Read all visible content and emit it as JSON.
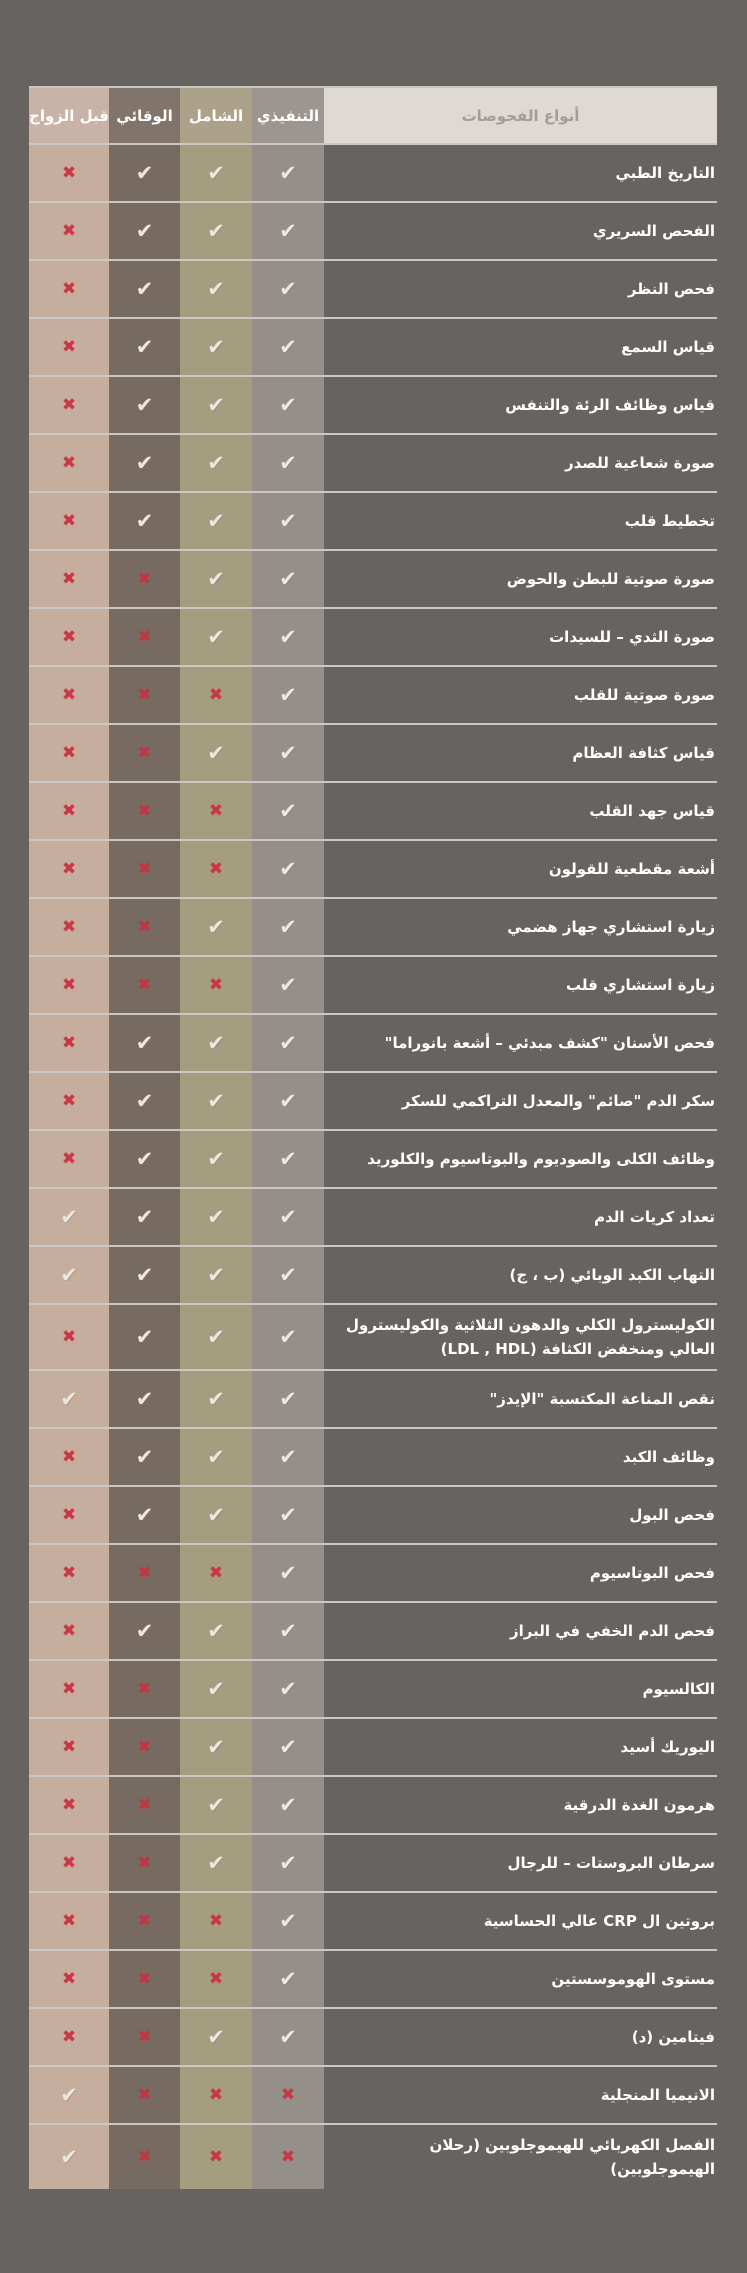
{
  "colors": {
    "page_background": "#666361",
    "row_separator": "#cbc8c4",
    "check_mark": "#ebe7e1",
    "x_mark": "#cb3040",
    "row_name_text": "#ffffff",
    "tests_header_background": "#ded9d3",
    "tests_header_text": "#a49d95"
  },
  "table": {
    "header": {
      "tests_label": "أنواع الفحوصات",
      "columns": [
        {
          "key": "executive",
          "label": "التنفيذي",
          "header_color": "#9c9590",
          "body_color": "#949089"
        },
        {
          "key": "comprehensive",
          "label": "الشامل",
          "header_color": "#aba289",
          "body_color": "#a59d80"
        },
        {
          "key": "preventive",
          "label": "الوقائي",
          "header_color": "#80746b",
          "body_color": "#776b61"
        },
        {
          "key": "premarital",
          "label": "قبل الزواج",
          "header_color": "#c9b2a7",
          "body_color": "#c6ae9f"
        }
      ]
    },
    "icons": {
      "check": "✔",
      "x": "✖"
    },
    "rows": [
      {
        "name": "التاريخ الطبي",
        "marks": [
          "check",
          "check",
          "check",
          "x"
        ]
      },
      {
        "name": "الفحص السريري",
        "marks": [
          "check",
          "check",
          "check",
          "x"
        ]
      },
      {
        "name": "فحص النظر",
        "marks": [
          "check",
          "check",
          "check",
          "x"
        ]
      },
      {
        "name": "قياس السمع",
        "marks": [
          "check",
          "check",
          "check",
          "x"
        ]
      },
      {
        "name": "قياس وظائف الرئة والتنفس",
        "marks": [
          "check",
          "check",
          "check",
          "x"
        ]
      },
      {
        "name": "صورة شعاعية للصدر",
        "marks": [
          "check",
          "check",
          "check",
          "x"
        ]
      },
      {
        "name": "تخطيط قلب",
        "marks": [
          "check",
          "check",
          "check",
          "x"
        ]
      },
      {
        "name": "صورة صوتية للبطن والحوض",
        "marks": [
          "check",
          "check",
          "x",
          "x"
        ]
      },
      {
        "name": "صورة الثدي – للسيدات",
        "marks": [
          "check",
          "check",
          "x",
          "x"
        ]
      },
      {
        "name": "صورة صوتية للقلب",
        "marks": [
          "check",
          "x",
          "x",
          "x"
        ]
      },
      {
        "name": "قياس كثافة العظام",
        "marks": [
          "check",
          "check",
          "x",
          "x"
        ]
      },
      {
        "name": "قياس جهد القلب",
        "marks": [
          "check",
          "x",
          "x",
          "x"
        ]
      },
      {
        "name": "أشعة مقطعية للقولون",
        "marks": [
          "check",
          "x",
          "x",
          "x"
        ]
      },
      {
        "name": "زيارة استشاري جهاز هضمي",
        "marks": [
          "check",
          "check",
          "x",
          "x"
        ]
      },
      {
        "name": "زيارة استشاري قلب",
        "marks": [
          "check",
          "x",
          "x",
          "x"
        ]
      },
      {
        "name": "فحص الأسنان \"كشف مبدئي – أشعة بانوراما\"",
        "marks": [
          "check",
          "check",
          "check",
          "x"
        ]
      },
      {
        "name": "سكر الدم \"صائم\" والمعدل التراكمي للسكر",
        "marks": [
          "check",
          "check",
          "check",
          "x"
        ]
      },
      {
        "name": "وظائف الكلى والصوديوم والبوتاسيوم والكلوريد",
        "marks": [
          "check",
          "check",
          "check",
          "x"
        ]
      },
      {
        "name": "تعداد كريات الدم",
        "marks": [
          "check",
          "check",
          "check",
          "check"
        ]
      },
      {
        "name": "التهاب الكبد الوبائي (ب ، ج)",
        "marks": [
          "check",
          "check",
          "check",
          "check"
        ]
      },
      {
        "name": "الكوليسترول الكلي والدهون الثلاثية والكوليسترول العالي ومنخفض الكثافة (LDL , HDL)",
        "marks": [
          "check",
          "check",
          "check",
          "x"
        ]
      },
      {
        "name": "نقص المناعة المكتسبة \"الإيدز\"",
        "marks": [
          "check",
          "check",
          "check",
          "check"
        ]
      },
      {
        "name": "وظائف الكبد",
        "marks": [
          "check",
          "check",
          "check",
          "x"
        ]
      },
      {
        "name": "فحص البول",
        "marks": [
          "check",
          "check",
          "check",
          "x"
        ]
      },
      {
        "name": "فحص البوتاسيوم",
        "marks": [
          "check",
          "x",
          "x",
          "x"
        ]
      },
      {
        "name": "فحص الدم الخفي في البراز",
        "marks": [
          "check",
          "check",
          "check",
          "x"
        ]
      },
      {
        "name": "الكالسيوم",
        "marks": [
          "check",
          "check",
          "x",
          "x"
        ]
      },
      {
        "name": "اليوريك أسيد",
        "marks": [
          "check",
          "check",
          "x",
          "x"
        ]
      },
      {
        "name": "هرمون الغدة الدرقية",
        "marks": [
          "check",
          "check",
          "x",
          "x"
        ]
      },
      {
        "name": "سرطان البروستات – للرجال",
        "marks": [
          "check",
          "check",
          "x",
          "x"
        ]
      },
      {
        "name": "بروتين ال CRP عالي الحساسية",
        "marks": [
          "check",
          "x",
          "x",
          "x"
        ]
      },
      {
        "name": "مستوى الهوموسستين",
        "marks": [
          "check",
          "x",
          "x",
          "x"
        ]
      },
      {
        "name": "فيتامين (د)",
        "marks": [
          "check",
          "check",
          "x",
          "x"
        ]
      },
      {
        "name": "الانيميا المنجلية",
        "marks": [
          "x",
          "x",
          "x",
          "check"
        ]
      },
      {
        "name": "الفصل الكهربائي للهيموجلوبين (رحلان الهيموجلوبين)",
        "marks": [
          "x",
          "x",
          "x",
          "check"
        ]
      }
    ]
  }
}
